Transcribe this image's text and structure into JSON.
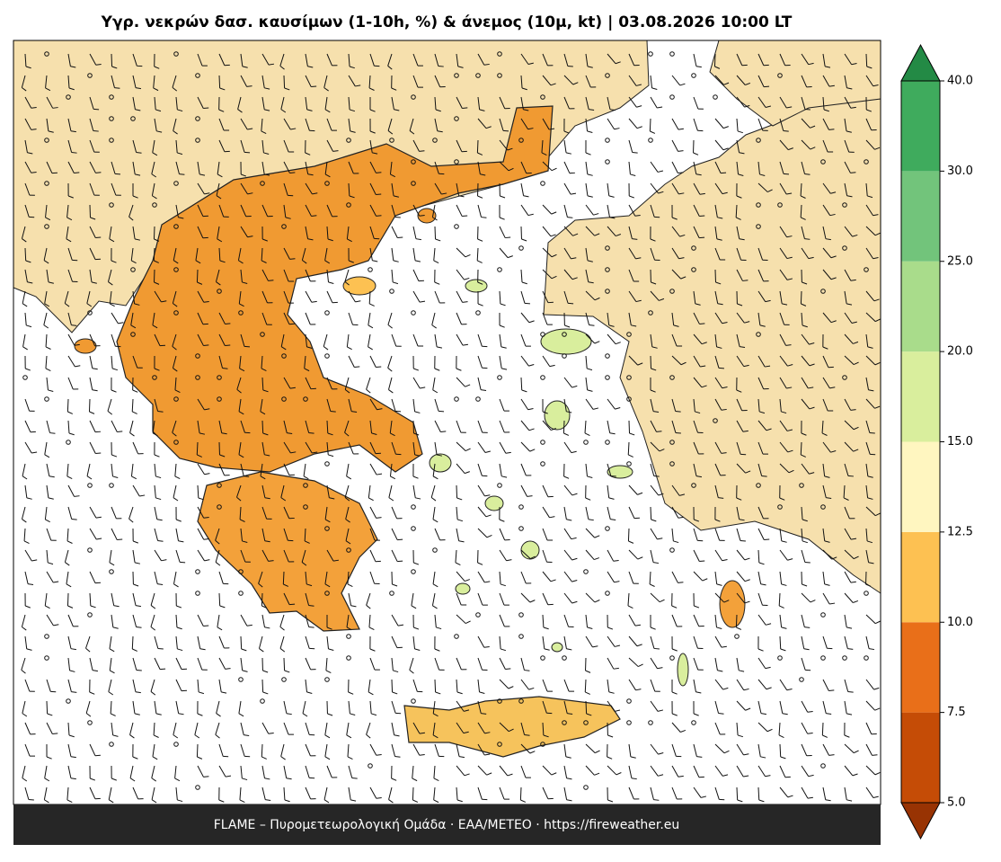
{
  "title": "Υγρ. νεκρών δασ. καυσίμων (1-10h, %) & άνεμος (10μ, kt)  |  03.08.2026 10:00 LT",
  "footer": "FLAME – Πυρομετεωρολογική Ομάδα · ΕΑΑ/METEO · https://fireweather.eu",
  "colorbar": {
    "ticks": [
      {
        "value": 5,
        "label": "5.0"
      },
      {
        "value": 7.5,
        "label": "7.5"
      },
      {
        "value": 10,
        "label": "10.0"
      },
      {
        "value": 12.5,
        "label": "12.5"
      },
      {
        "value": 15,
        "label": "15.0"
      },
      {
        "value": 20,
        "label": "20.0"
      },
      {
        "value": 25,
        "label": "25.0"
      },
      {
        "value": 30,
        "label": "30.0"
      },
      {
        "value": 40,
        "label": "40.0"
      }
    ],
    "colors": [
      "#c54c06",
      "#e96f19",
      "#fdc152",
      "#fff6c0",
      "#d9ee9d",
      "#a9dc8b",
      "#72c47b",
      "#3fab5d"
    ],
    "under_color": "#983303",
    "over_color": "#238a45"
  }
}
